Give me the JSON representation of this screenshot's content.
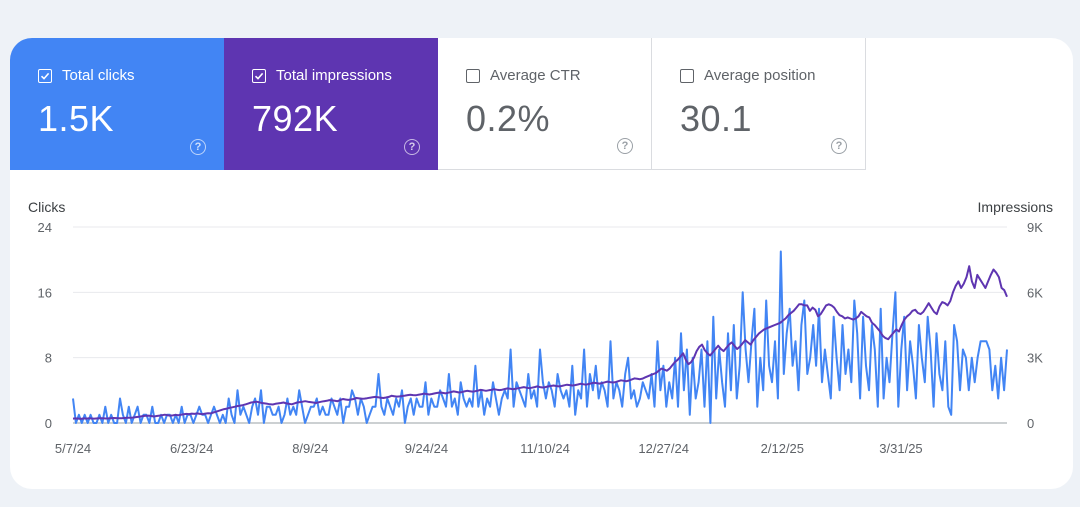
{
  "metrics": [
    {
      "label": "Total clicks",
      "value": "1.5K",
      "checked": true
    },
    {
      "label": "Total impressions",
      "value": "792K",
      "checked": true
    },
    {
      "label": "Average CTR",
      "value": "0.2%",
      "checked": false
    },
    {
      "label": "Average position",
      "value": "30.1",
      "checked": false
    }
  ],
  "help_glyph": "?",
  "colors": {
    "clicks": "#4285f4",
    "impressions": "#5e35b1",
    "unselected_text": "#5f6368",
    "grid": "#e8eaed"
  },
  "chart_data": {
    "type": "line",
    "ylabel": "Clicks",
    "y2label": "Impressions",
    "ylim": [
      0,
      24
    ],
    "y2lim": [
      0,
      9000
    ],
    "yticks": [
      "0",
      "8",
      "16",
      "24"
    ],
    "y2ticks": [
      "0",
      "3K",
      "6K",
      "9K"
    ],
    "xticks": [
      "5/7/24",
      "6/23/24",
      "8/9/24",
      "9/24/24",
      "11/10/24",
      "12/27/24",
      "2/12/25",
      "3/31/25"
    ],
    "x_start": "2024-05-07",
    "x_end": "2025-05-12",
    "grid": true,
    "series": [
      {
        "name": "Clicks",
        "axis": "left",
        "color": "#4285f4",
        "values": [
          3,
          0,
          1,
          0,
          1,
          0,
          1,
          0,
          0,
          1,
          0,
          2,
          0,
          1,
          0,
          0,
          3,
          1,
          0,
          2,
          0,
          1,
          2,
          0,
          1,
          1,
          0,
          2,
          0,
          0,
          1,
          0,
          1,
          1,
          0,
          1,
          0,
          2,
          0,
          1,
          1,
          0,
          1,
          2,
          1,
          1,
          0,
          1,
          2,
          1,
          0,
          1,
          0,
          3,
          1,
          0,
          4,
          1,
          2,
          1,
          0,
          2,
          3,
          1,
          4,
          0,
          2,
          2,
          1,
          1,
          2,
          0,
          1,
          3,
          1,
          2,
          1,
          4,
          2,
          0,
          1,
          2,
          2,
          3,
          1,
          2,
          1,
          1,
          3,
          2,
          1,
          3,
          0,
          2,
          2,
          4,
          3,
          1,
          3,
          2,
          0,
          1,
          2,
          2,
          6,
          2,
          1,
          3,
          2,
          1,
          3,
          2,
          4,
          0,
          2,
          3,
          1,
          3,
          2,
          2,
          5,
          1,
          3,
          2,
          2,
          4,
          3,
          2,
          6,
          2,
          3,
          1,
          5,
          3,
          2,
          3,
          2,
          7,
          2,
          4,
          1,
          3,
          2,
          5,
          3,
          1,
          3,
          4,
          3,
          9,
          2,
          5,
          4,
          3,
          2,
          6,
          3,
          4,
          2,
          9,
          5,
          3,
          5,
          4,
          2,
          6,
          4,
          3,
          4,
          2,
          7,
          1,
          4,
          3,
          9,
          2,
          6,
          4,
          7,
          3,
          5,
          4,
          2,
          10,
          3,
          5,
          4,
          2,
          6,
          8,
          3,
          4,
          2,
          3,
          5,
          4,
          3,
          6,
          2,
          10,
          4,
          7,
          2,
          5,
          3,
          8,
          2,
          11,
          4,
          9,
          1,
          8,
          3,
          5,
          9,
          2,
          10,
          0,
          13,
          3,
          9,
          5,
          2,
          11,
          4,
          12,
          3,
          7,
          16,
          9,
          5,
          10,
          14,
          2,
          8,
          4,
          15,
          7,
          5,
          10,
          3,
          21,
          6,
          11,
          14,
          7,
          10,
          4,
          12,
          15,
          6,
          8,
          12,
          7,
          14,
          5,
          9,
          6,
          3,
          13,
          8,
          4,
          12,
          6,
          9,
          5,
          15,
          11,
          3,
          13,
          7,
          4,
          12,
          9,
          2,
          14,
          3,
          8,
          5,
          11,
          16,
          2,
          9,
          13,
          4,
          10,
          7,
          3,
          12,
          8,
          5,
          13,
          9,
          2,
          11,
          6,
          4,
          10,
          2,
          1,
          12,
          10,
          4,
          9,
          8,
          4,
          8,
          5,
          8,
          10,
          10,
          10,
          9,
          4,
          7,
          3,
          8,
          4,
          9
        ]
      },
      {
        "name": "Impressions",
        "axis": "right",
        "color": "#5e35b1",
        "values": [
          200,
          210,
          200,
          190,
          210,
          200,
          215,
          205,
          200,
          210,
          215,
          220,
          205,
          210,
          220,
          230,
          225,
          215,
          220,
          230,
          240,
          245,
          250,
          260,
          280,
          300,
          320,
          330,
          340,
          320,
          300,
          320,
          340,
          360,
          380,
          360,
          340,
          350,
          370,
          360,
          380,
          400,
          420,
          410,
          430,
          420,
          440,
          420,
          410,
          430,
          450,
          440,
          480,
          520,
          560,
          600,
          640,
          660,
          700,
          720,
          750,
          780,
          800,
          820,
          860,
          900,
          940,
          960,
          980,
          950,
          920,
          900,
          880,
          860,
          850,
          880,
          900,
          920,
          940,
          900,
          880,
          860,
          900,
          940,
          960,
          980,
          1000,
          980,
          960,
          940,
          920,
          950,
          980,
          1000,
          1020,
          1050,
          1040,
          1020,
          1000,
          1050,
          1100,
          1080,
          1060,
          1080,
          1100,
          1150,
          1130,
          1110,
          1120,
          1140,
          1160,
          1180,
          1200,
          1180,
          1160,
          1150,
          1170,
          1200,
          1250,
          1230,
          1210,
          1220,
          1240,
          1260,
          1280,
          1300,
          1280,
          1270,
          1300,
          1320,
          1350,
          1330,
          1310,
          1330,
          1360,
          1380,
          1400,
          1380,
          1360,
          1390,
          1420,
          1450,
          1430,
          1400,
          1420,
          1450,
          1480,
          1460,
          1440,
          1460,
          1490,
          1520,
          1500,
          1480,
          1500,
          1520,
          1550,
          1530,
          1510,
          1530,
          1560,
          1590,
          1570,
          1550,
          1570,
          1600,
          1620,
          1650,
          1620,
          1600,
          1620,
          1650,
          1680,
          1650,
          1630,
          1650,
          1680,
          1700,
          1720,
          1700,
          1680,
          1700,
          1730,
          1760,
          1740,
          1720,
          1740,
          1770,
          1800,
          1780,
          1760,
          1790,
          1820,
          1850,
          1830,
          1810,
          1830,
          1870,
          1900,
          1880,
          1860,
          1880,
          1920,
          1960,
          1940,
          1920,
          1950,
          2000,
          2050,
          2030,
          2010,
          2040,
          2100,
          2150,
          2200,
          2250,
          2300,
          2400,
          2500,
          2450,
          2400,
          2500,
          2650,
          2800,
          2900,
          3050,
          3200,
          2900,
          2700,
          2800,
          3000,
          3300,
          3500,
          3600,
          3350,
          3200,
          3100,
          3250,
          3400,
          3550,
          3400,
          3300,
          3450,
          3600,
          3700,
          3550,
          3400,
          3500,
          3650,
          3800,
          3700,
          3600,
          3800,
          3950,
          4100,
          4200,
          4300,
          4350,
          4400,
          4450,
          4500,
          4550,
          4600,
          4700,
          4800,
          4950,
          5050,
          5150,
          5300,
          5450,
          5450,
          5400,
          5400,
          5150,
          5300,
          5200,
          4900,
          5000,
          5200,
          5400,
          5450,
          5400,
          5300,
          5100,
          4950,
          4900,
          4800,
          4850,
          4800,
          4750,
          4800,
          4900,
          5100,
          5000,
          4900,
          4850,
          4600,
          4500,
          4350,
          4200,
          4000,
          3900,
          3850,
          4000,
          4150,
          4300,
          4200,
          4500,
          4750,
          4900,
          5000,
          5150,
          5200,
          5050,
          5000,
          5100,
          5300,
          5500,
          5300,
          5100,
          5000,
          5350,
          5550,
          5500,
          5400,
          5600,
          6000,
          6300,
          6500,
          6200,
          6400,
          6700,
          7200,
          6500,
          6200,
          6800,
          6600,
          6400,
          6200,
          6500,
          6800,
          7050,
          6900,
          6700,
          6200,
          6100,
          5800
        ]
      }
    ]
  }
}
